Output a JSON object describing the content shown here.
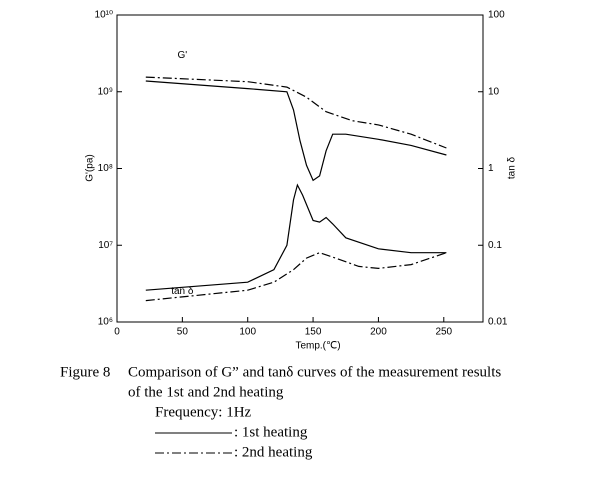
{
  "chart_data": {
    "type": "line",
    "xlabel": "Temp.(℃)",
    "ylabel": "G'(pa)",
    "y2label": "tan δ",
    "annotations": [
      {
        "text": "G'",
        "x": 50,
        "y": 3000000000
      },
      {
        "text": "tan δ",
        "x": 50,
        "y": 0.025,
        "axis": "y2"
      }
    ],
    "xlim": [
      0,
      280
    ],
    "xticks": [
      0,
      50,
      100,
      150,
      200,
      250
    ],
    "ylim": [
      1000000,
      10000000000
    ],
    "ylog": true,
    "yticks": [
      {
        "value": 1000000,
        "label": "10⁶"
      },
      {
        "value": 10000000,
        "label": "10⁷"
      },
      {
        "value": 100000000,
        "label": "10⁸"
      },
      {
        "value": 1000000000,
        "label": "10⁹"
      },
      {
        "value": 10000000000,
        "label": "10¹⁰"
      }
    ],
    "y2lim": [
      0.01,
      100
    ],
    "y2log": true,
    "y2ticks": [
      0.01,
      0.1,
      1,
      10,
      100
    ],
    "series": [
      {
        "color": "#000000",
        "dash": "solid",
        "x": [
          22,
          100,
          130,
          135,
          140,
          145,
          150,
          155,
          160,
          165,
          175,
          200,
          225,
          252
        ],
        "values": [
          1380000000,
          1100000000,
          1000000000,
          580000000,
          230000000,
          110000000,
          70000000,
          80000000,
          170000000,
          280000000,
          280000000,
          240000000,
          200000000,
          150000000
        ]
      },
      {
        "color": "#000000",
        "dash": "dashdot",
        "x": [
          22,
          100,
          130,
          145,
          160,
          180,
          200,
          225,
          252
        ],
        "values": [
          1550000000,
          1350000000,
          1150000000,
          850000000,
          550000000,
          420000000,
          370000000,
          280000000,
          185000000
        ]
      },
      {
        "color": "#000000",
        "dash": "solid",
        "axis": "y2",
        "x": [
          22,
          100,
          120,
          130,
          135,
          138,
          142,
          150,
          155,
          160,
          165,
          175,
          200,
          225,
          252
        ],
        "values": [
          0.026,
          0.033,
          0.048,
          0.1,
          0.39,
          0.61,
          0.45,
          0.21,
          0.2,
          0.23,
          0.19,
          0.125,
          0.09,
          0.08,
          0.08
        ]
      },
      {
        "color": "#000000",
        "dash": "dashdot",
        "axis": "y2",
        "x": [
          22,
          100,
          120,
          135,
          145,
          155,
          165,
          185,
          200,
          225,
          252
        ],
        "values": [
          0.019,
          0.026,
          0.033,
          0.048,
          0.068,
          0.08,
          0.07,
          0.053,
          0.05,
          0.056,
          0.08
        ]
      }
    ]
  },
  "caption": {
    "label": "Figure 8",
    "lines": [
      "Comparison of G” and tanδ curves of the measurement results",
      "of the 1st and 2nd heating"
    ],
    "frequency": "Frequency: 1Hz",
    "legend": [
      {
        "dash": "solid",
        "text": ": 1st heating"
      },
      {
        "dash": "dashdot",
        "text": ": 2nd heating"
      }
    ]
  }
}
